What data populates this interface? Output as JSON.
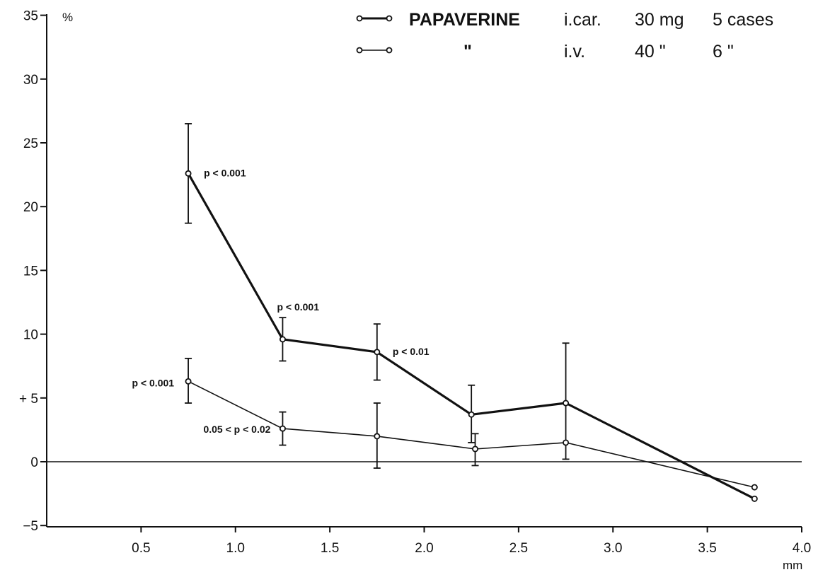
{
  "chart_data": {
    "type": "line",
    "y_unit": "%",
    "x_unit": "mm",
    "x_ticks": [
      0.5,
      1.0,
      1.5,
      2.0,
      2.5,
      3.0,
      3.5,
      4.0
    ],
    "x_tick_labels": [
      "0.5",
      "1.0",
      "1.5",
      "2.0",
      "2.5",
      "3.0",
      "3.5",
      "4.0"
    ],
    "y_ticks": [
      -5,
      0,
      5,
      10,
      15,
      20,
      25,
      30,
      35
    ],
    "y_tick_labels": [
      "−5",
      "0",
      "+ 5",
      "10",
      "15",
      "20",
      "25",
      "30",
      "35"
    ],
    "xlim": [
      0,
      4.0
    ],
    "ylim": [
      -5,
      35
    ],
    "grid": false,
    "zero_line": true,
    "legend": {
      "placement": "top-right",
      "rows": [
        {
          "label": "PAPAVERINE",
          "route": "i.car.",
          "dose": "30 mg",
          "cases": "5 cases"
        },
        {
          "label": "\"",
          "route": "i.v.",
          "dose": "40 \"",
          "cases": "6 \""
        }
      ]
    },
    "series": [
      {
        "line_weight": "thick",
        "points": [
          {
            "x": 0.75,
            "y": 22.6,
            "err_low": 18.7,
            "err_high": 26.5
          },
          {
            "x": 1.25,
            "y": 9.6,
            "err_low": 7.9,
            "err_high": 11.3
          },
          {
            "x": 1.75,
            "y": 8.6,
            "err_low": 6.4,
            "err_high": 10.8
          },
          {
            "x": 2.25,
            "y": 3.7,
            "err_low": 1.5,
            "err_high": 6.0
          },
          {
            "x": 2.75,
            "y": 4.6,
            "err_low": 0.2,
            "err_high": 9.3
          },
          {
            "x": 3.75,
            "y": -2.9
          }
        ]
      },
      {
        "line_weight": "thin",
        "points": [
          {
            "x": 0.75,
            "y": 6.3,
            "err_low": 4.6,
            "err_high": 8.1
          },
          {
            "x": 1.25,
            "y": 2.6,
            "err_low": 1.3,
            "err_high": 3.9
          },
          {
            "x": 1.75,
            "y": 2.0,
            "err_low": -0.5,
            "err_high": 4.6
          },
          {
            "x": 2.27,
            "y": 1.0,
            "err_low": -0.3,
            "err_high": 2.2
          },
          {
            "x": 2.75,
            "y": 1.5
          },
          {
            "x": 3.75,
            "y": -2.0
          }
        ]
      }
    ],
    "annotations": [
      {
        "text": "p < 0.001",
        "x": 0.75,
        "y": 22.6
      },
      {
        "text": "p < 0.001",
        "x": 1.25,
        "y": 11.3
      },
      {
        "text": "p < 0.01",
        "x": 1.75,
        "y": 8.6
      },
      {
        "text": "p < 0.001",
        "x": 0.75,
        "y": 6.3
      },
      {
        "text": "0.05 < p < 0.02",
        "x": 1.25,
        "y": 2.6
      }
    ]
  }
}
